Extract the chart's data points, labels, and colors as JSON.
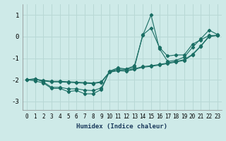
{
  "xlabel": "Humidex (Indice chaleur)",
  "bg_color": "#ceeae8",
  "grid_color": "#b8d8d5",
  "line_color": "#1a6e64",
  "xlim": [
    -0.5,
    23.5
  ],
  "ylim": [
    -3.4,
    1.5
  ],
  "yticks": [
    -3,
    -2,
    -1,
    0,
    1
  ],
  "xticks": [
    0,
    1,
    2,
    3,
    4,
    5,
    6,
    7,
    8,
    9,
    10,
    11,
    12,
    13,
    14,
    15,
    16,
    17,
    18,
    19,
    20,
    21,
    22,
    23
  ],
  "series": [
    {
      "x": [
        0,
        1,
        2,
        3,
        4,
        5,
        6,
        7,
        8,
        9,
        10,
        11,
        12,
        13,
        14,
        15,
        16,
        17,
        18,
        19,
        20,
        21,
        22,
        23
      ],
      "y": [
        -2.0,
        -2.05,
        -2.15,
        -2.4,
        -2.4,
        -2.55,
        -2.5,
        -2.65,
        -2.65,
        -2.45,
        -1.6,
        -1.45,
        -1.5,
        -1.35,
        0.05,
        1.0,
        -0.55,
        -1.15,
        -1.1,
        -0.95,
        -0.5,
        -0.1,
        0.3,
        0.1
      ]
    },
    {
      "x": [
        0,
        1,
        2,
        3,
        4,
        5,
        6,
        7,
        8,
        9,
        10,
        11,
        12,
        13,
        14,
        15,
        16,
        17,
        18,
        19,
        20,
        21,
        22,
        23
      ],
      "y": [
        -2.0,
        -1.95,
        -2.1,
        -2.35,
        -2.35,
        -2.42,
        -2.42,
        -2.48,
        -2.5,
        -2.38,
        -1.62,
        -1.5,
        -1.52,
        -1.42,
        0.08,
        0.4,
        -0.5,
        -0.9,
        -0.85,
        -0.85,
        -0.35,
        -0.15,
        0.05,
        0.05
      ]
    },
    {
      "x": [
        0,
        1,
        2,
        3,
        4,
        5,
        6,
        7,
        8,
        9,
        10,
        11,
        12,
        13,
        14,
        15,
        16,
        17,
        18,
        19,
        20,
        21,
        22,
        23
      ],
      "y": [
        -2.0,
        -1.98,
        -2.05,
        -2.1,
        -2.1,
        -2.12,
        -2.14,
        -2.16,
        -2.18,
        -2.12,
        -1.65,
        -1.58,
        -1.6,
        -1.52,
        -1.42,
        -1.38,
        -1.32,
        -1.25,
        -1.18,
        -1.1,
        -0.85,
        -0.45,
        0.0,
        0.05
      ]
    },
    {
      "x": [
        0,
        1,
        2,
        3,
        4,
        5,
        6,
        7,
        8,
        9,
        10,
        11,
        12,
        13,
        14,
        15,
        16,
        17,
        18,
        19,
        20,
        21,
        22,
        23
      ],
      "y": [
        -2.0,
        -1.97,
        -2.03,
        -2.07,
        -2.07,
        -2.09,
        -2.11,
        -2.13,
        -2.15,
        -2.09,
        -1.63,
        -1.56,
        -1.57,
        -1.49,
        -1.39,
        -1.35,
        -1.29,
        -1.22,
        -1.15,
        -1.07,
        -0.82,
        -0.43,
        0.02,
        0.07
      ]
    }
  ]
}
